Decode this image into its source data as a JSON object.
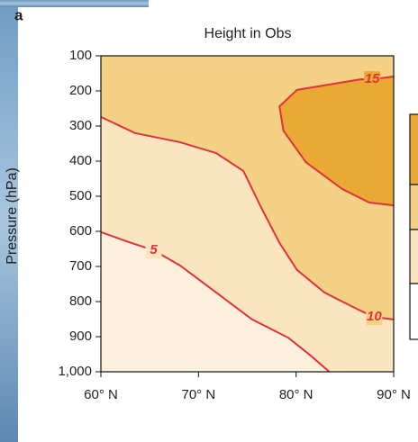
{
  "panel_label": "a",
  "chart_data": {
    "type": "contour",
    "title": "Height in Obs",
    "y_label": "Pressure (hPa)",
    "xlim": [
      60,
      90
    ],
    "ylim": [
      1000,
      100
    ],
    "xticks": [
      {
        "value": 60,
        "label": "60° N"
      },
      {
        "value": 70,
        "label": "70° N"
      },
      {
        "value": 80,
        "label": "80° N"
      },
      {
        "value": 90,
        "label": "90° N"
      }
    ],
    "yticks": [
      100,
      200,
      300,
      400,
      500,
      600,
      700,
      800,
      900,
      {
        "value": 1000,
        "label": "1,000"
      }
    ],
    "background": "#fdf0dc",
    "line_color": "#e0323a",
    "series": [
      {
        "name": "5",
        "fill": "#fbe5bf",
        "x": [
          60,
          62.6,
          65.4,
          68.1,
          71.8,
          75.5,
          79.2,
          81.5,
          83.4
        ],
        "y": [
          602,
          628,
          654,
          697,
          774,
          851,
          903,
          954,
          1000
        ]
      },
      {
        "name": "10",
        "fill": "#f4d185",
        "x": [
          60,
          63.5,
          68.1,
          71.8,
          74.6,
          76.4,
          78.3,
          80.1,
          82.9,
          86.6,
          88,
          90
        ],
        "y": [
          274,
          320,
          346,
          377,
          428,
          531,
          633,
          710,
          774,
          826,
          844,
          851
        ]
      },
      {
        "name": "15",
        "fill": "#eaa835",
        "x": [
          90,
          87.8,
          86.6,
          80.1,
          78.3,
          78.7,
          81,
          84.7,
          87.5,
          90
        ],
        "y": [
          159,
          167,
          167,
          197,
          244,
          313,
          403,
          479,
          518,
          526
        ]
      }
    ]
  }
}
